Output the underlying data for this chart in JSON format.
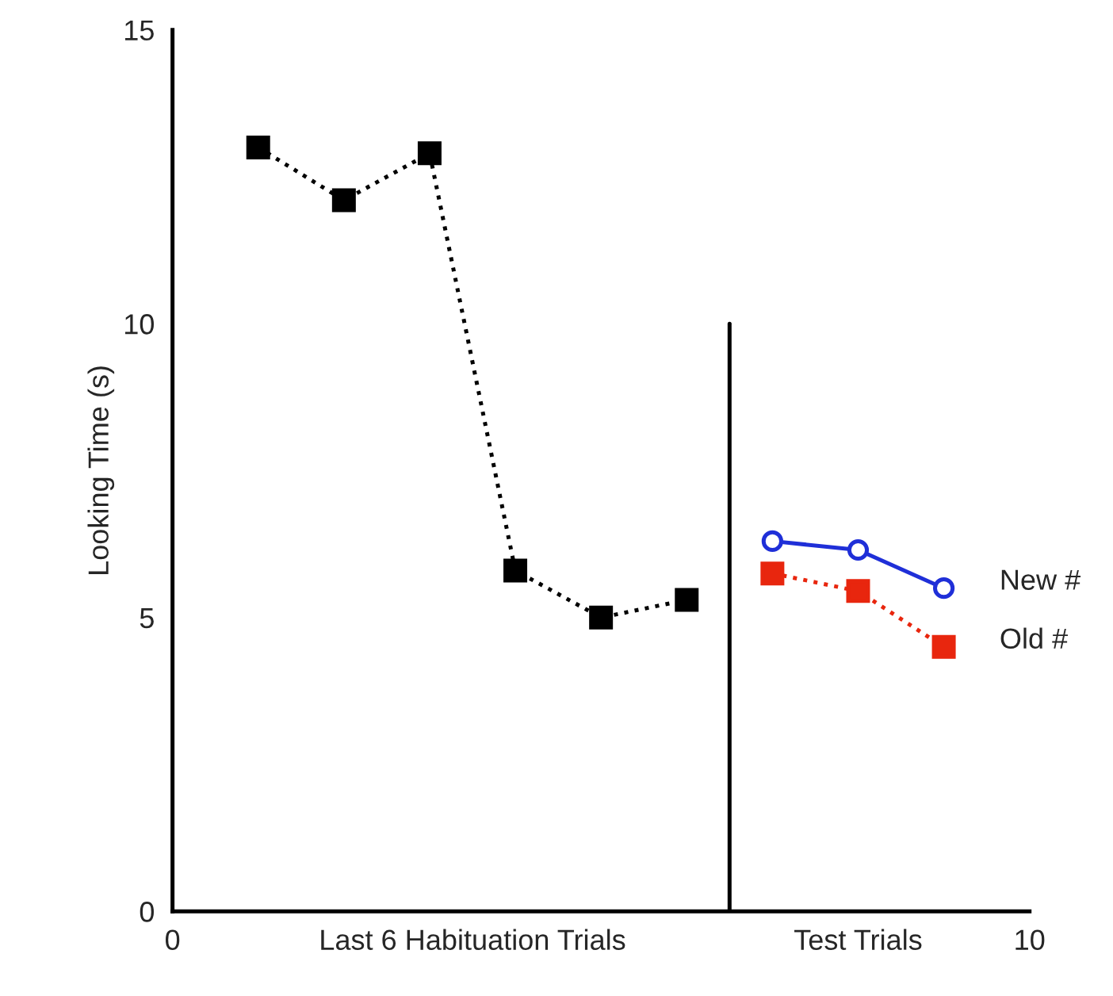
{
  "chart_data": {
    "type": "line",
    "ylabel": "Looking Time (s)",
    "xlim": [
      0,
      10
    ],
    "ylim": [
      0,
      15
    ],
    "yticks": [
      0,
      5,
      10,
      15
    ],
    "xticks": [
      0,
      {
        "value": 3.5,
        "label": "Last 6 Habituation Trials"
      },
      {
        "value": 8,
        "label": "Test Trials"
      },
      10
    ],
    "grid": false,
    "legend": false,
    "ref_lines": [
      {
        "axis": "x",
        "value": 6.5,
        "color": "#000000"
      }
    ],
    "series": [
      {
        "color": "#000000",
        "x": [
          1,
          2,
          3,
          4,
          5,
          6
        ],
        "values": [
          13.0,
          12.1,
          12.9,
          5.8,
          5.0,
          5.3
        ],
        "marker": "square",
        "line_style": "dotted"
      },
      {
        "name": "New #",
        "color": "#1f2fd8",
        "x": [
          7,
          8,
          9
        ],
        "values": [
          6.3,
          6.15,
          5.5
        ],
        "marker": "circle",
        "line_style": "solid"
      },
      {
        "name": "Old #",
        "color": "#e8260e",
        "x": [
          7,
          8,
          9
        ],
        "values": [
          5.75,
          5.45,
          4.5
        ],
        "marker": "square",
        "line_style": "dotted"
      }
    ]
  }
}
